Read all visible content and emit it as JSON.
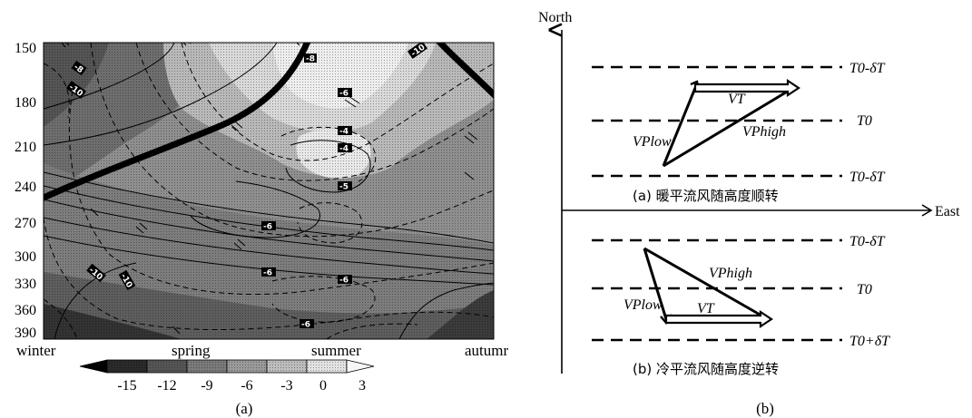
{
  "panel_a": {
    "y_ticks": [
      "150",
      "180",
      "210",
      "240",
      "270",
      "300",
      "330",
      "360",
      "390"
    ],
    "x_labels": [
      "winter",
      "spring",
      "summer",
      "autumr"
    ],
    "colorbar_ticks": [
      "-15",
      "-12",
      "-9",
      "-6",
      "-3",
      "0",
      "3"
    ],
    "contour_labels": [
      "-8",
      "-6",
      "-4",
      "-4",
      "-5",
      "-6",
      "-6",
      "-6",
      "-6",
      "-10",
      "-10",
      "-10",
      "-10",
      "-8"
    ],
    "caption": "(a)"
  },
  "panel_b": {
    "axis_north": "North",
    "axis_east": "East",
    "top": {
      "line_top": "T0-δT",
      "line_mid": "T0",
      "line_bot": "T0-δT",
      "vt": "VT",
      "vplow": "VPlow",
      "vphigh": "VPhigh",
      "caption": "(a) 暖平流风随高度顺转"
    },
    "bottom": {
      "line_top": "T0-δT",
      "line_mid": "T0",
      "line_bot": "T0+δT",
      "vt": "VT",
      "vplow": "VPlow",
      "vphigh": "VPhigh",
      "caption": "(b) 冷平流风随高度逆转"
    },
    "caption": "(b)"
  }
}
